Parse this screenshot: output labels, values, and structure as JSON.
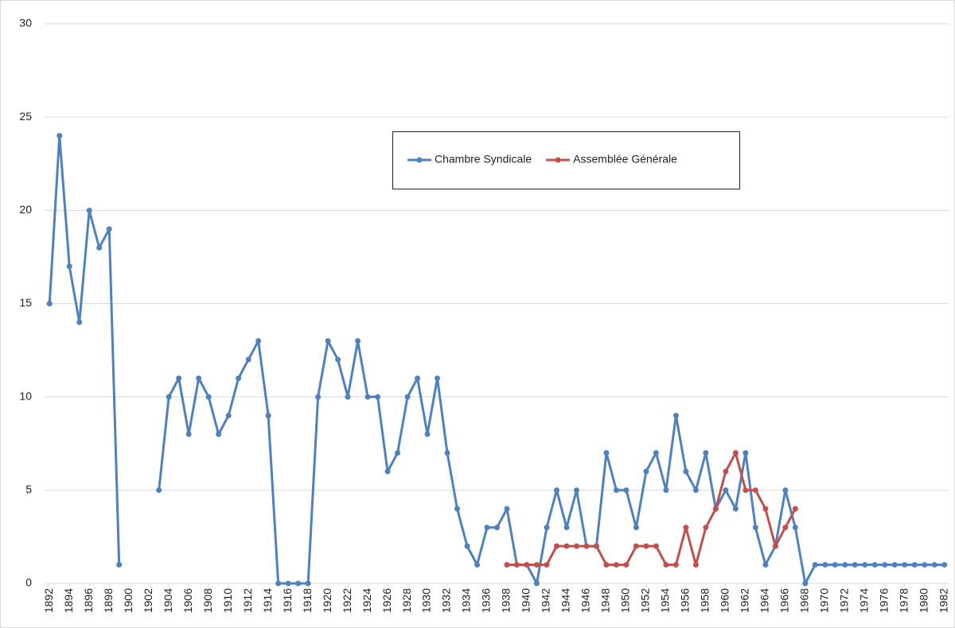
{
  "chart_data": {
    "type": "line",
    "x": [
      1892,
      1893,
      1894,
      1895,
      1896,
      1897,
      1898,
      1899,
      1900,
      1901,
      1902,
      1903,
      1904,
      1905,
      1906,
      1907,
      1908,
      1909,
      1910,
      1911,
      1912,
      1913,
      1914,
      1915,
      1916,
      1917,
      1918,
      1919,
      1920,
      1921,
      1922,
      1923,
      1924,
      1925,
      1926,
      1927,
      1928,
      1929,
      1930,
      1931,
      1932,
      1933,
      1934,
      1935,
      1936,
      1937,
      1938,
      1939,
      1940,
      1941,
      1942,
      1943,
      1944,
      1945,
      1946,
      1947,
      1948,
      1949,
      1950,
      1951,
      1952,
      1953,
      1954,
      1955,
      1956,
      1957,
      1958,
      1959,
      1960,
      1961,
      1962,
      1963,
      1964,
      1965,
      1966,
      1967,
      1968,
      1969,
      1970,
      1971,
      1972,
      1973,
      1974,
      1975,
      1976,
      1977,
      1978,
      1979,
      1980,
      1981,
      1982
    ],
    "series": [
      {
        "name": "Chambre Syndicale",
        "color": "#4f81bd",
        "values": [
          15,
          24,
          17,
          14,
          20,
          18,
          19,
          1,
          null,
          null,
          null,
          5,
          10,
          11,
          8,
          11,
          10,
          8,
          9,
          11,
          12,
          13,
          9,
          0,
          0,
          0,
          0,
          10,
          13,
          12,
          10,
          13,
          10,
          10,
          6,
          7,
          10,
          11,
          8,
          11,
          7,
          4,
          2,
          1,
          3,
          3,
          4,
          1,
          1,
          0,
          3,
          5,
          3,
          5,
          2,
          2,
          7,
          5,
          5,
          3,
          6,
          7,
          5,
          9,
          6,
          5,
          7,
          4,
          5,
          4,
          7,
          3,
          1,
          2,
          5,
          3,
          0,
          1,
          1,
          1,
          1,
          1,
          1,
          1,
          1,
          1,
          1,
          1,
          1,
          1,
          1
        ]
      },
      {
        "name": "Assemblée Générale",
        "color": "#c0504d",
        "values": [
          null,
          null,
          null,
          null,
          null,
          null,
          null,
          null,
          null,
          null,
          null,
          null,
          null,
          null,
          null,
          null,
          null,
          null,
          null,
          null,
          null,
          null,
          null,
          null,
          null,
          null,
          null,
          null,
          null,
          null,
          null,
          null,
          null,
          null,
          null,
          null,
          null,
          null,
          null,
          null,
          null,
          null,
          null,
          null,
          null,
          null,
          1,
          1,
          1,
          1,
          1,
          2,
          2,
          2,
          2,
          2,
          1,
          1,
          1,
          2,
          2,
          2,
          1,
          1,
          3,
          1,
          3,
          4,
          6,
          7,
          5,
          5,
          4,
          2,
          3,
          4,
          null,
          null,
          null,
          null,
          null,
          null,
          null,
          null,
          null,
          null,
          null,
          null,
          null,
          null,
          null
        ]
      }
    ],
    "xlim": [
      1891.5,
      1982.5
    ],
    "xticks": [
      1892,
      1894,
      1896,
      1898,
      1900,
      1902,
      1904,
      1906,
      1908,
      1910,
      1912,
      1914,
      1916,
      1918,
      1920,
      1922,
      1924,
      1926,
      1928,
      1930,
      1932,
      1934,
      1936,
      1938,
      1940,
      1942,
      1944,
      1946,
      1948,
      1950,
      1952,
      1954,
      1956,
      1958,
      1960,
      1962,
      1964,
      1966,
      1968,
      1970,
      1972,
      1974,
      1976,
      1978,
      1980,
      1982
    ],
    "ylim": [
      0,
      30
    ],
    "yticks": [
      0,
      5,
      10,
      15,
      20,
      25,
      30
    ],
    "grid": true
  }
}
